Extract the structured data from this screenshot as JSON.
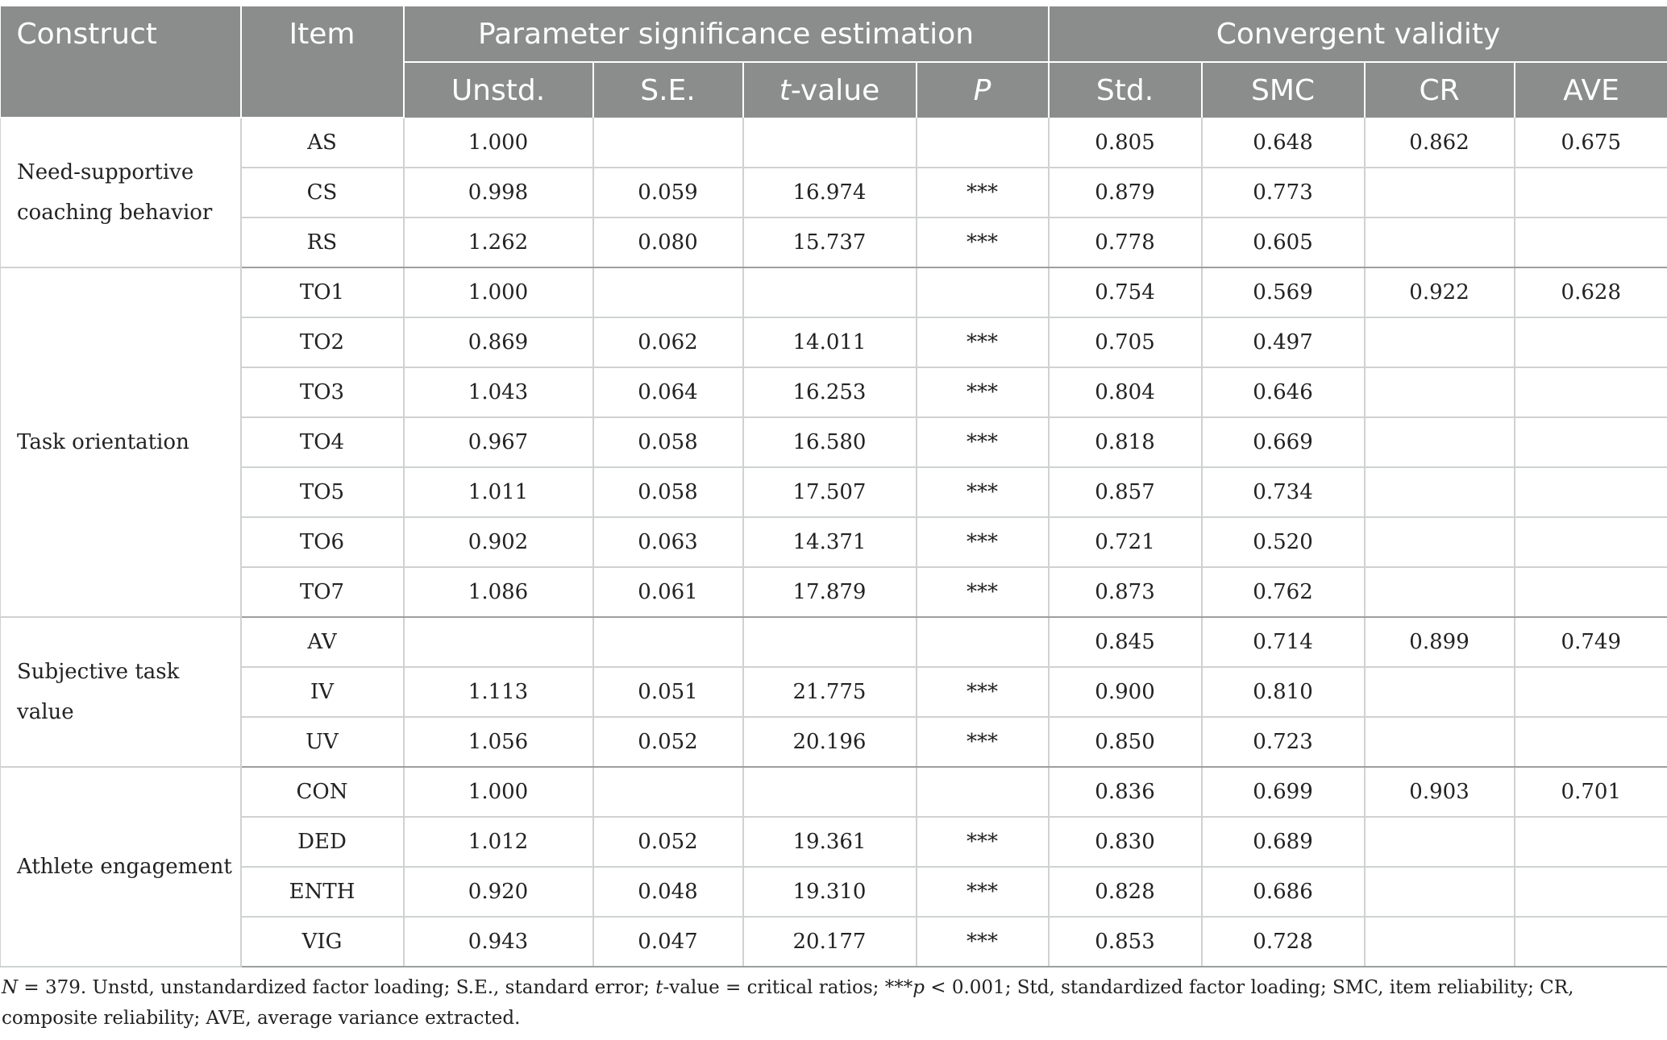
{
  "table": {
    "headers": {
      "construct": "Construct",
      "item": "Item",
      "group_param": "Parameter significance estimation",
      "group_conv": "Convergent validity",
      "unstd": "Unstd.",
      "se": "S.E.",
      "t_italic": "t",
      "t_rest": "-value",
      "p": "P",
      "std": "Std.",
      "smc": "SMC",
      "cr": "CR",
      "ave": "AVE"
    },
    "groups": [
      {
        "construct": "Need-supportive coaching behavior",
        "cr": "0.862",
        "ave": "0.675",
        "rows": [
          {
            "item": "AS",
            "unstd": "1.000",
            "se": "",
            "t": "",
            "p": "",
            "std": "0.805",
            "smc": "0.648"
          },
          {
            "item": "CS",
            "unstd": "0.998",
            "se": "0.059",
            "t": "16.974",
            "p": "***",
            "std": "0.879",
            "smc": "0.773"
          },
          {
            "item": "RS",
            "unstd": "1.262",
            "se": "0.080",
            "t": "15.737",
            "p": "***",
            "std": "0.778",
            "smc": "0.605"
          }
        ]
      },
      {
        "construct": "Task orientation",
        "cr": "0.922",
        "ave": "0.628",
        "rows": [
          {
            "item": "TO1",
            "unstd": "1.000",
            "se": "",
            "t": "",
            "p": "",
            "std": "0.754",
            "smc": "0.569"
          },
          {
            "item": "TO2",
            "unstd": "0.869",
            "se": "0.062",
            "t": "14.011",
            "p": "***",
            "std": "0.705",
            "smc": "0.497"
          },
          {
            "item": "TO3",
            "unstd": "1.043",
            "se": "0.064",
            "t": "16.253",
            "p": "***",
            "std": "0.804",
            "smc": "0.646"
          },
          {
            "item": "TO4",
            "unstd": "0.967",
            "se": "0.058",
            "t": "16.580",
            "p": "***",
            "std": "0.818",
            "smc": "0.669"
          },
          {
            "item": "TO5",
            "unstd": "1.011",
            "se": "0.058",
            "t": "17.507",
            "p": "***",
            "std": "0.857",
            "smc": "0.734"
          },
          {
            "item": "TO6",
            "unstd": "0.902",
            "se": "0.063",
            "t": "14.371",
            "p": "***",
            "std": "0.721",
            "smc": "0.520"
          },
          {
            "item": "TO7",
            "unstd": "1.086",
            "se": "0.061",
            "t": "17.879",
            "p": "***",
            "std": "0.873",
            "smc": "0.762"
          }
        ]
      },
      {
        "construct": "Subjective task value",
        "cr": "0.899",
        "ave": "0.749",
        "rows": [
          {
            "item": "AV",
            "unstd": "",
            "se": "",
            "t": "",
            "p": "",
            "std": "0.845",
            "smc": "0.714"
          },
          {
            "item": "IV",
            "unstd": "1.113",
            "se": "0.051",
            "t": "21.775",
            "p": "***",
            "std": "0.900",
            "smc": "0.810"
          },
          {
            "item": "UV",
            "unstd": "1.056",
            "se": "0.052",
            "t": "20.196",
            "p": "***",
            "std": "0.850",
            "smc": "0.723"
          }
        ]
      },
      {
        "construct": "Athlete engagement",
        "cr": "0.903",
        "ave": "0.701",
        "rows": [
          {
            "item": "CON",
            "unstd": "1.000",
            "se": "",
            "t": "",
            "p": "",
            "std": "0.836",
            "smc": "0.699"
          },
          {
            "item": "DED",
            "unstd": "1.012",
            "se": "0.052",
            "t": "19.361",
            "p": "***",
            "std": "0.830",
            "smc": "0.689"
          },
          {
            "item": "ENTH",
            "unstd": "0.920",
            "se": "0.048",
            "t": "19.310",
            "p": "***",
            "std": "0.828",
            "smc": "0.686"
          },
          {
            "item": "VIG",
            "unstd": "0.943",
            "se": "0.047",
            "t": "20.177",
            "p": "***",
            "std": "0.853",
            "smc": "0.728"
          }
        ]
      }
    ]
  },
  "note": {
    "n_italic": "N",
    "part1": " = 379. Unstd, unstandardized factor loading; S.E., standard error; ",
    "t_italic": "t",
    "part2": "-value = critical ratios; ***",
    "p_italic": "p",
    "part3": " < 0.001; Std, standardized factor loading; SMC, item reliability; CR, composite reliability; AVE, average variance extracted."
  }
}
